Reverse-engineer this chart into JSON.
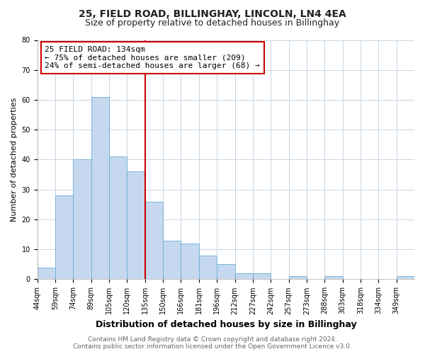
{
  "title": "25, FIELD ROAD, BILLINGHAY, LINCOLN, LN4 4EA",
  "subtitle": "Size of property relative to detached houses in Billinghay",
  "xlabel": "Distribution of detached houses by size in Billinghay",
  "ylabel": "Number of detached properties",
  "bar_values": [
    4,
    28,
    40,
    61,
    41,
    36,
    26,
    13,
    12,
    8,
    5,
    2,
    2,
    0,
    1,
    0,
    1,
    0,
    0,
    0,
    1
  ],
  "bin_labels": [
    "44sqm",
    "59sqm",
    "74sqm",
    "89sqm",
    "105sqm",
    "120sqm",
    "135sqm",
    "150sqm",
    "166sqm",
    "181sqm",
    "196sqm",
    "212sqm",
    "227sqm",
    "242sqm",
    "257sqm",
    "273sqm",
    "288sqm",
    "303sqm",
    "318sqm",
    "334sqm",
    "349sqm"
  ],
  "num_bins": 21,
  "bar_color": "#c5d8ef",
  "bar_edge_color": "#6aafd6",
  "vline_x": 6,
  "vline_color": "#cc0000",
  "ylim": [
    0,
    80
  ],
  "yticks": [
    0,
    10,
    20,
    30,
    40,
    50,
    60,
    70,
    80
  ],
  "annotation_title": "25 FIELD ROAD: 134sqm",
  "annotation_line1": "← 75% of detached houses are smaller (209)",
  "annotation_line2": "24% of semi-detached houses are larger (68) →",
  "annotation_box_color": "#cc0000",
  "footer_line1": "Contains HM Land Registry data © Crown copyright and database right 2024.",
  "footer_line2": "Contains public sector information licensed under the Open Government Licence v3.0.",
  "bg_color": "#ffffff",
  "plot_bg_color": "#ffffff",
  "grid_color": "#c8d4e4",
  "title_fontsize": 10,
  "subtitle_fontsize": 9,
  "xlabel_fontsize": 9,
  "ylabel_fontsize": 8,
  "tick_fontsize": 7,
  "annotation_fontsize": 8,
  "footer_fontsize": 6.5
}
